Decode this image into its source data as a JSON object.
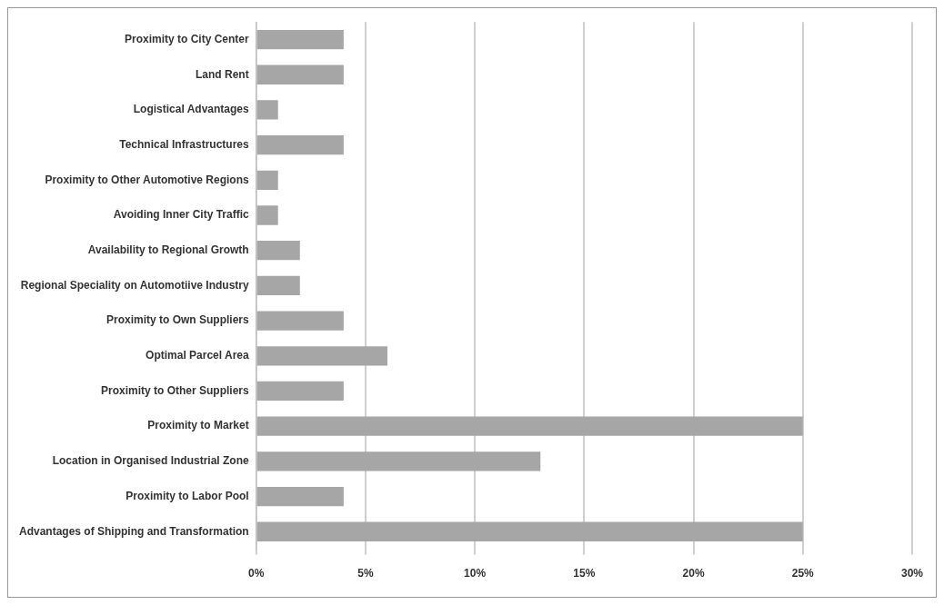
{
  "chart_data": {
    "type": "bar",
    "orientation": "horizontal",
    "categories": [
      "Proximity to City Center",
      "Land Rent",
      "Logistical Advantages",
      "Technical Infrastructures",
      "Proximity to Other Automotive Regions",
      "Avoiding Inner City Traffic",
      "Availability to Regional Growth",
      "Regional Speciality on Automotiive Industry",
      "Proximity to Own Suppliers",
      "Optimal Parcel Area",
      "Proximity to Other Suppliers",
      "Proximity to Market",
      "Location in Organised Industrial Zone",
      "Proximity to Labor Pool",
      "Advantages of Shipping and Transformation"
    ],
    "values": [
      4,
      4,
      1,
      4,
      1,
      1,
      2,
      2,
      4,
      6,
      4,
      25,
      13,
      4,
      25
    ],
    "color": "#a6a6a6",
    "xlim": [
      0,
      30
    ],
    "xticks": [
      {
        "value": 0,
        "label": "0%"
      },
      {
        "value": 5,
        "label": "5%"
      },
      {
        "value": 10,
        "label": "10%"
      },
      {
        "value": 15,
        "label": "15%"
      },
      {
        "value": 20,
        "label": "20%"
      },
      {
        "value": 25,
        "label": "25%"
      },
      {
        "value": 30,
        "label": "30%"
      }
    ],
    "grid": "x",
    "legend": false
  }
}
